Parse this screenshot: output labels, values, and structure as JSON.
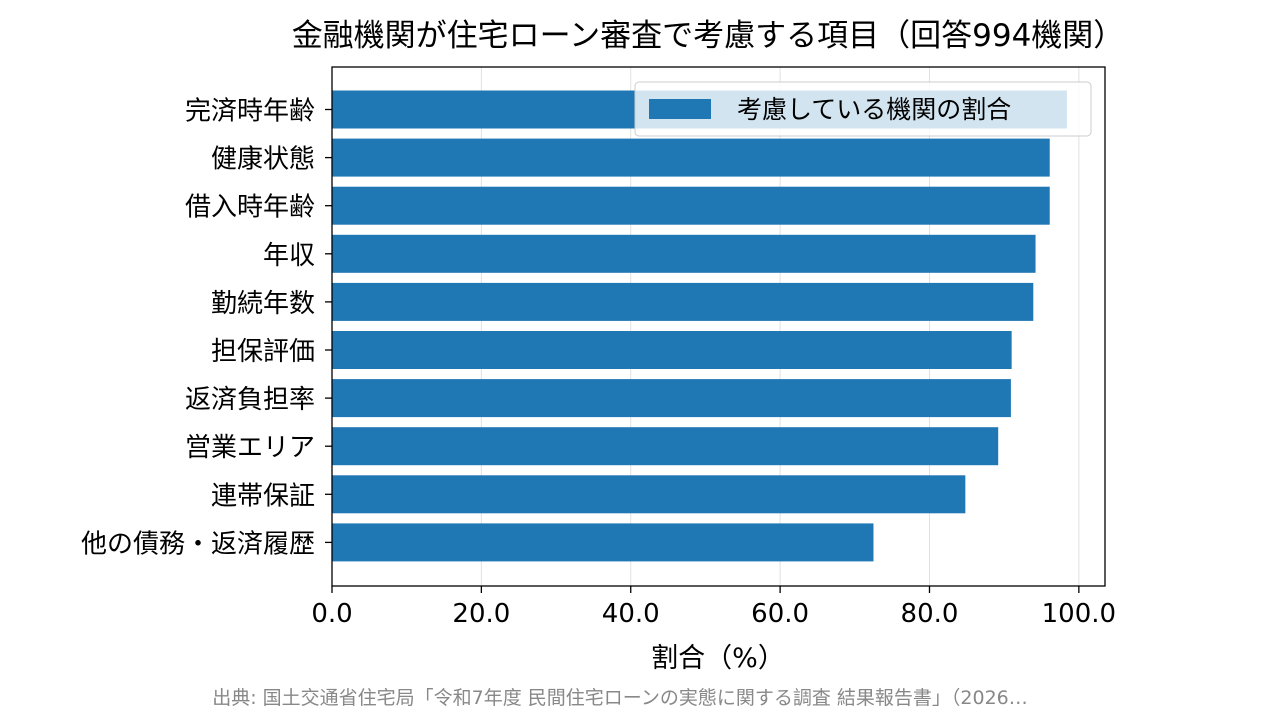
{
  "chart_data": {
    "type": "bar",
    "orientation": "horizontal",
    "title": "金融機関が住宅ローン審査で考慮する項目（回答994機関）",
    "xlabel": "割合（%）",
    "ylabel": "",
    "xlim": [
      0,
      103.5
    ],
    "xticks": [
      "0.0",
      "20.0",
      "40.0",
      "60.0",
      "80.0",
      "100.0"
    ],
    "tick_values": [
      0,
      20,
      40,
      60,
      80,
      100
    ],
    "grid": "x",
    "legend_position": "top-right",
    "categories": [
      "完済時年齢",
      "健康状態",
      "借入時年齢",
      "年収",
      "勤続年数",
      "担保評価",
      "返済負担率",
      "営業エリア",
      "連帯保証",
      "他の債務・返済履歴"
    ],
    "series": [
      {
        "name": "考慮している機関の割合",
        "values": [
          98.4,
          96.1,
          96.1,
          94.2,
          93.9,
          91.0,
          90.9,
          89.2,
          84.8,
          72.5
        ]
      }
    ],
    "bar_color": "#1f77b4",
    "source": "出典: 国土交通省住宅局「令和7年度 民間住宅ローンの実態に関する調査 結果報告書」（2026…"
  }
}
